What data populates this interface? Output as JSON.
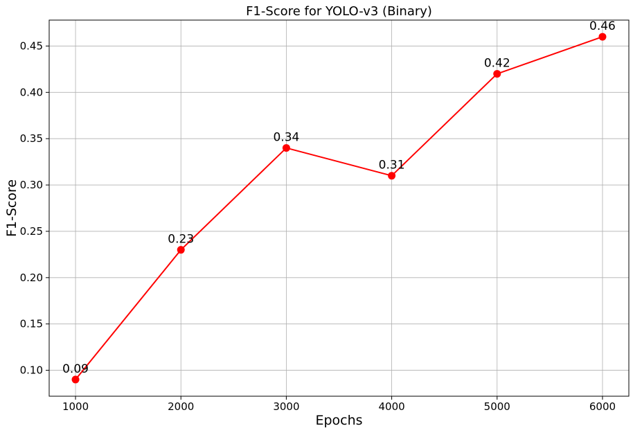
{
  "chart_data": {
    "type": "line",
    "title": "F1-Score for YOLO-v3 (Binary)",
    "xlabel": "Epochs",
    "ylabel": "F1-Score",
    "x": [
      1000,
      2000,
      3000,
      4000,
      5000,
      6000
    ],
    "series": [
      {
        "values": [
          0.09,
          0.23,
          0.34,
          0.31,
          0.42,
          0.46
        ],
        "data_labels": [
          "0.09",
          "0.23",
          "0.34",
          "0.31",
          "0.42",
          "0.46"
        ],
        "color": "#ff0000",
        "marker": "circle"
      }
    ],
    "xlim": [
      750,
      6250
    ],
    "ylim": [
      0.072,
      0.478
    ],
    "xticks": [
      1000,
      2000,
      3000,
      4000,
      5000,
      6000
    ],
    "xtick_labels": [
      "1000",
      "2000",
      "3000",
      "4000",
      "5000",
      "6000"
    ],
    "yticks": [
      0.1,
      0.15,
      0.2,
      0.25,
      0.3,
      0.35,
      0.4,
      0.45
    ],
    "ytick_labels": [
      "0.10",
      "0.15",
      "0.20",
      "0.25",
      "0.30",
      "0.35",
      "0.40",
      "0.45"
    ],
    "grid": true,
    "legend": "none"
  }
}
